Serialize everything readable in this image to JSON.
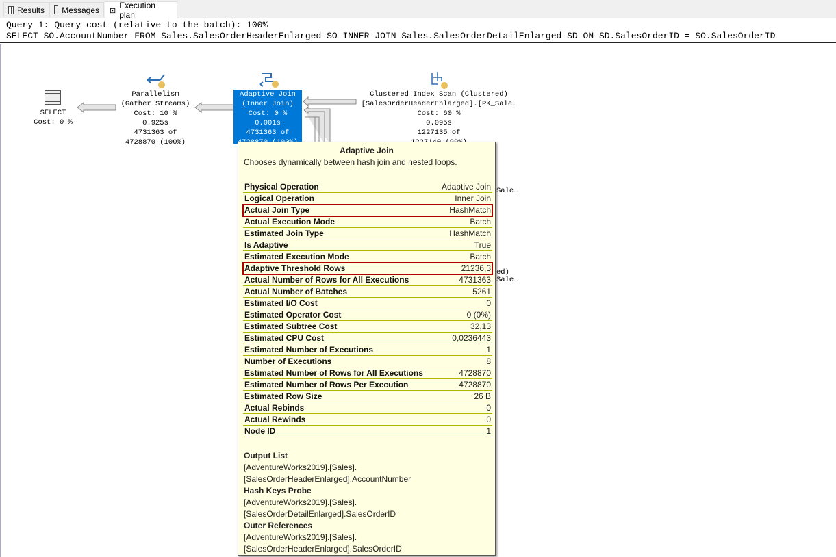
{
  "tabs": [
    {
      "label": "Results",
      "icon": "grid-icon"
    },
    {
      "label": "Messages",
      "icon": "messages-icon"
    },
    {
      "label": "Execution plan",
      "icon": "plan-icon"
    }
  ],
  "query": {
    "line1": "Query 1: Query cost (relative to the batch): 100%",
    "line2": "SELECT SO.AccountNumber FROM Sales.SalesOrderHeaderEnlarged SO INNER JOIN Sales.SalesOrderDetailEnlarged SD ON SD.SalesOrderID = SO.SalesOrderID"
  },
  "nodes": {
    "select": {
      "title": "SELECT",
      "cost": "Cost: 0 %"
    },
    "parallelism": {
      "title": "Parallelism",
      "sub": "(Gather Streams)",
      "cost": "Cost: 10 %",
      "time": "0.925s",
      "rows": "4731363 of",
      "est": "4728870 (100%)"
    },
    "adaptive": {
      "title": "Adaptive Join",
      "sub": "(Inner Join)",
      "cost": "Cost: 0 %",
      "time": "0.001s",
      "rows": "4731363 of",
      "est": "4728870 (100%)"
    },
    "scan": {
      "title": "Clustered Index Scan (Clustered)",
      "sub": "[SalesOrderHeaderEnlarged].[PK_Sale…",
      "cost": "Cost: 60 %",
      "time": "0.095s",
      "rows": "1227135 of",
      "est": "1227140 (99%)"
    },
    "frag1": "Sale…",
    "frag2": "ed)",
    "frag3": "Sale…"
  },
  "tooltip": {
    "title": "Adaptive Join",
    "desc": "Chooses dynamically between hash join and nested loops.",
    "rows": [
      {
        "k": "Physical Operation",
        "v": "Adaptive Join"
      },
      {
        "k": "Logical Operation",
        "v": "Inner Join"
      },
      {
        "k": "Actual Join Type",
        "v": "HashMatch",
        "highlight": true
      },
      {
        "k": "Actual Execution Mode",
        "v": "Batch"
      },
      {
        "k": "Estimated Join Type",
        "v": "HashMatch"
      },
      {
        "k": "Is Adaptive",
        "v": "True"
      },
      {
        "k": "Estimated Execution Mode",
        "v": "Batch"
      },
      {
        "k": "Adaptive Threshold Rows",
        "v": "21236,3",
        "highlight": true
      },
      {
        "k": "Actual Number of Rows for All Executions",
        "v": "4731363"
      },
      {
        "k": "Actual Number of Batches",
        "v": "5261"
      },
      {
        "k": "Estimated I/O Cost",
        "v": "0"
      },
      {
        "k": "Estimated Operator Cost",
        "v": "0 (0%)"
      },
      {
        "k": "Estimated Subtree Cost",
        "v": "32,13"
      },
      {
        "k": "Estimated CPU Cost",
        "v": "0,0236443"
      },
      {
        "k": "Estimated Number of Executions",
        "v": "1"
      },
      {
        "k": "Number of Executions",
        "v": "8"
      },
      {
        "k": "Estimated Number of Rows for All Executions",
        "v": "4728870"
      },
      {
        "k": "Estimated Number of Rows Per Execution",
        "v": "4728870"
      },
      {
        "k": "Estimated Row Size",
        "v": "26 B"
      },
      {
        "k": "Actual Rebinds",
        "v": "0"
      },
      {
        "k": "Actual Rewinds",
        "v": "0"
      },
      {
        "k": "Node ID",
        "v": "1"
      }
    ],
    "sections": [
      {
        "h": "Output List",
        "l1": "[AdventureWorks2019].[Sales].",
        "l2": "[SalesOrderHeaderEnlarged].AccountNumber"
      },
      {
        "h": "Hash Keys Probe",
        "l1": "[AdventureWorks2019].[Sales].",
        "l2": "[SalesOrderDetailEnlarged].SalesOrderID"
      },
      {
        "h": "Outer References",
        "l1": "[AdventureWorks2019].[Sales].",
        "l2": "[SalesOrderHeaderEnlarged].SalesOrderID"
      }
    ]
  }
}
